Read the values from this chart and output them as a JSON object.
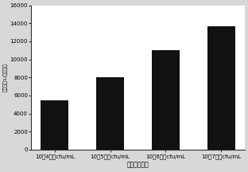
{
  "categories": [
    "10的4次方cfu/mL",
    "10的5次方cfu/mL",
    "10的6次方cfu/mL",
    "10的7次方cfu/mL"
  ],
  "values": [
    5500,
    8000,
    11000,
    13700
  ],
  "bar_color": "#111111",
  "xlabel": "大肠杆菌浓度",
  "ylabel": "拉曼位移1/峰的强度",
  "ylim": [
    0,
    16000
  ],
  "yticks": [
    0,
    2000,
    4000,
    6000,
    8000,
    10000,
    12000,
    14000,
    16000
  ],
  "bg_color": "#d8d8d8",
  "plot_bg": "#ffffff",
  "xlabel_fontsize": 5.5,
  "ylabel_fontsize": 4.5,
  "tick_fontsize": 5.0,
  "bar_width": 0.5
}
